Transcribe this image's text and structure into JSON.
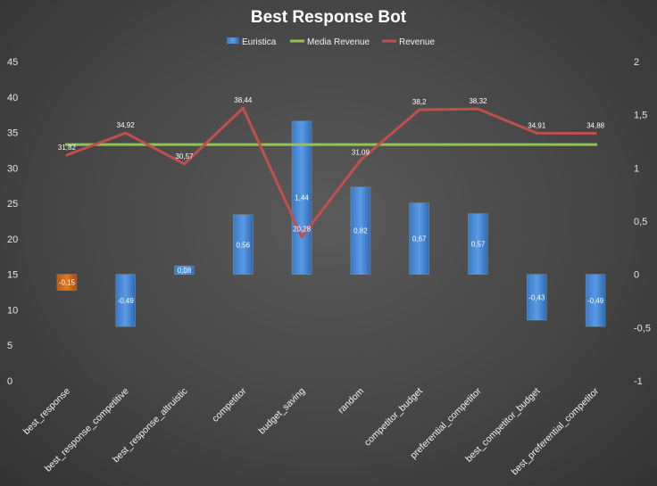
{
  "chart_data": {
    "type": "bar",
    "title": "Best Response Bot",
    "categories": [
      "best_response",
      "best_response_competitive",
      "best_response_altruistic",
      "competitor",
      "budget_saving",
      "random",
      "competitor_budget",
      "preferential_competitor",
      "best_competitor_budget",
      "best_preferential_competitor"
    ],
    "series": [
      {
        "name": "Euristica",
        "kind": "bar",
        "axis": "secondary",
        "color": "#4a8fdc",
        "negative_first_color": "#d46a1a",
        "values": [
          -0.15,
          -0.49,
          0.08,
          0.56,
          1.44,
          0.82,
          0.67,
          0.57,
          -0.43,
          -0.49
        ],
        "labels": [
          "-0,15",
          "-0,49",
          "0,08",
          "0,56",
          "1,44",
          "0,82",
          "0,67",
          "0,57",
          "-0,43",
          "-0,49"
        ]
      },
      {
        "name": "Media Revenue",
        "kind": "line",
        "axis": "primary",
        "color": "#92c353",
        "values": [
          33.3,
          33.3,
          33.3,
          33.3,
          33.3,
          33.3,
          33.3,
          33.3,
          33.3,
          33.3
        ]
      },
      {
        "name": "Revenue",
        "kind": "line",
        "axis": "primary",
        "color": "#c0504d",
        "values": [
          31.82,
          34.92,
          30.57,
          38.44,
          20.28,
          31.09,
          38.2,
          38.32,
          34.91,
          34.88
        ],
        "labels": [
          "31,82",
          "34,92",
          "30,57",
          "38,44",
          "20,28",
          "31,09",
          "38,2",
          "38,32",
          "34,91",
          "34,88"
        ]
      }
    ],
    "y_primary": {
      "min": 0,
      "max": 45,
      "step": 5,
      "ticks": [
        "0",
        "5",
        "10",
        "15",
        "20",
        "25",
        "30",
        "35",
        "40",
        "45"
      ]
    },
    "y_secondary": {
      "min": -1,
      "max": 2,
      "step": 0.5,
      "ticks": [
        "-1",
        "-0,5",
        "0",
        "0,5",
        "1",
        "1,5",
        "2"
      ]
    },
    "legend": "top",
    "grid": false
  }
}
